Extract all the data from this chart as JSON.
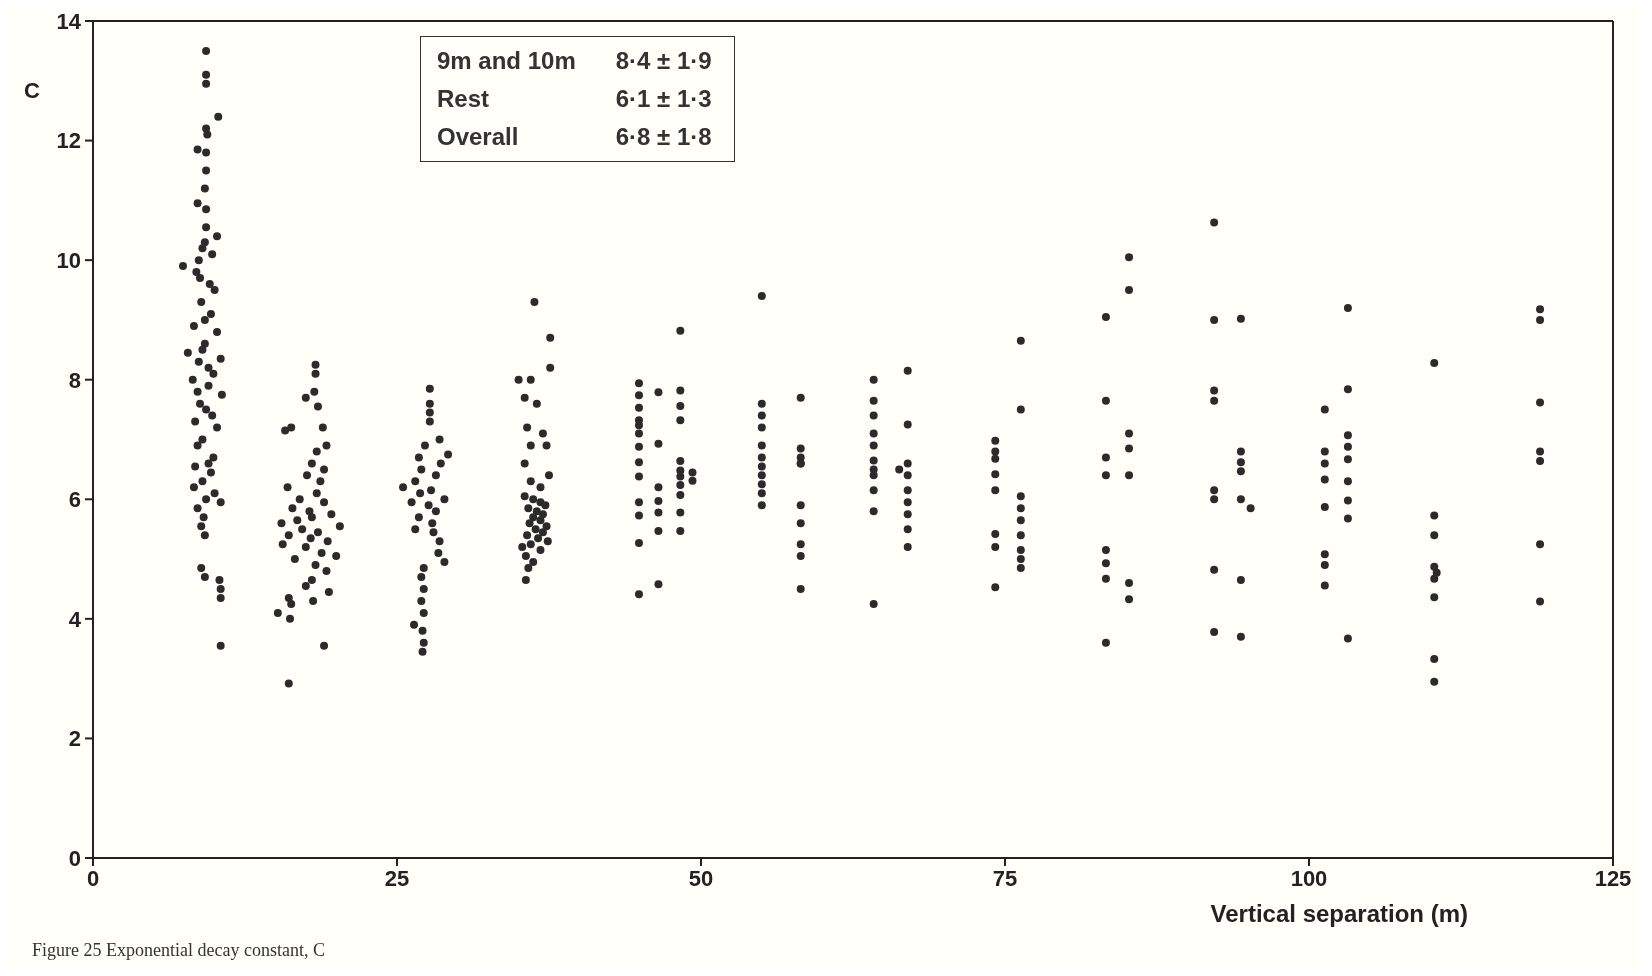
{
  "chart_data": {
    "type": "scatter",
    "xlabel": "Vertical separation (m)",
    "ylabel": "C",
    "xlim": [
      0,
      125
    ],
    "xticks": [
      0,
      25,
      50,
      75,
      100,
      125
    ],
    "ylim": [
      0,
      14
    ],
    "yticks": [
      0,
      2,
      4,
      6,
      8,
      10,
      12,
      14
    ],
    "grid": false,
    "legend": false,
    "marker": "circle",
    "annotations": [
      "9m and 10m",
      "8·4 ± 1·9",
      "Rest",
      "6·1 ± 1·3",
      "Overall",
      "6·8 ± 1·8",
      "Figure 25  Exponential decay constant, C"
    ],
    "series": [
      {
        "color": "#2b2b2b",
        "x": [
          9.3,
          9.3,
          9.3,
          10.3,
          9.3,
          9.4,
          8.6,
          9.3,
          9.3,
          9.2,
          8.6,
          9.3,
          9.3,
          10.2,
          9.0,
          9.8,
          8.7,
          7.4,
          8.5,
          9.6,
          10.0,
          8.9,
          9.7,
          8.3,
          10.2,
          9.2,
          7.8,
          10.5,
          8.7,
          9.9,
          8.2,
          9.5,
          10.6,
          8.8,
          9.3,
          8.4,
          10.2,
          9.0,
          8.6,
          9.9,
          8.4,
          9.7,
          9.0,
          8.3,
          10.0,
          9.3,
          10.5,
          8.6,
          9.1,
          8.9,
          9.2,
          8.9,
          9.2,
          10.4,
          10.5,
          10.5,
          10.5,
          9.2,
          9.0,
          9.5,
          8.6,
          9.8,
          9.5,
          8.8,
          9.2,
          18.3,
          18.3,
          18.2,
          17.5,
          18.5,
          18.9,
          15.8,
          16.3,
          19.2,
          18.4,
          18.0,
          17.6,
          18.7,
          16.0,
          17.0,
          19.0,
          16.4,
          17.8,
          19.6,
          15.5,
          20.3,
          17.2,
          18.5,
          16.1,
          19.3,
          15.6,
          17.5,
          18.8,
          20.0,
          16.6,
          18.3,
          19.2,
          18.0,
          17.5,
          19.4,
          18.1,
          16.3,
          15.2,
          16.2,
          16.1,
          19.0,
          16.1,
          18.4,
          18.0,
          17.9,
          16.8,
          19.0,
          27.7,
          27.7,
          27.7,
          27.7,
          28.5,
          27.3,
          29.2,
          26.8,
          28.6,
          27.0,
          28.2,
          26.5,
          25.5,
          27.8,
          26.9,
          28.9,
          26.2,
          27.6,
          28.2,
          26.8,
          27.9,
          26.5,
          28.0,
          28.5,
          28.4,
          28.9,
          27.2,
          27.0,
          27.2,
          27.0,
          27.2,
          26.4,
          27.1,
          27.2,
          27.1,
          36.3,
          37.6,
          37.6,
          35.0,
          36.0,
          35.5,
          36.5,
          35.7,
          37.0,
          36.0,
          37.3,
          35.5,
          37.5,
          36.0,
          36.8,
          35.5,
          36.2,
          36.8,
          37.2,
          35.8,
          36.5,
          37.0,
          36.2,
          36.8,
          35.9,
          37.3,
          36.4,
          37.0,
          35.7,
          36.6,
          37.4,
          36.0,
          35.3,
          36.8,
          35.6,
          36.2,
          35.8,
          35.6,
          44.9,
          44.9,
          44.9,
          44.9,
          44.9,
          44.9,
          44.9,
          44.9,
          44.9,
          44.9,
          44.9,
          44.9,
          44.9,
          46.5,
          46.5,
          46.5,
          46.5,
          46.5,
          46.5,
          46.5,
          48.3,
          48.3,
          48.3,
          48.3,
          48.3,
          48.3,
          48.3,
          48.3,
          48.3,
          48.3,
          48.3,
          49.3,
          49.3,
          55,
          55,
          55,
          55,
          55,
          55,
          55,
          55,
          55,
          55,
          55,
          58.2,
          58.2,
          58.2,
          58.2,
          58.2,
          58.2,
          58.2,
          58.2,
          58.2,
          58.2,
          64.2,
          64.2,
          64.2,
          64.2,
          64.2,
          64.2,
          64.2,
          64.2,
          64.2,
          64.2,
          64.2,
          67,
          67,
          67,
          67,
          67,
          67,
          67,
          67,
          67,
          66.3,
          74.2,
          74.2,
          74.2,
          74.2,
          74.2,
          74.2,
          74.2,
          74.2,
          76.3,
          76.3,
          76.3,
          76.3,
          76.3,
          76.3,
          76.3,
          76.3,
          76.3,
          83.3,
          83.3,
          83.3,
          83.3,
          83.3,
          83.3,
          83.3,
          83.3,
          85.2,
          85.2,
          85.2,
          85.2,
          85.2,
          85.2,
          85.2,
          92.2,
          92.2,
          92.2,
          92.2,
          92.2,
          92.2,
          92.2,
          92.2,
          94.4,
          94.4,
          94.4,
          94.4,
          94.4,
          95.2,
          94.4,
          94.4,
          101.3,
          101.3,
          101.3,
          101.3,
          101.3,
          101.3,
          101.3,
          101.3,
          103.2,
          103.2,
          103.2,
          103.2,
          103.2,
          103.2,
          103.2,
          103.2,
          103.2,
          110.3,
          110.3,
          110.3,
          110.3,
          110.5,
          110.3,
          110.3,
          110.3,
          110.3,
          119,
          119,
          119,
          119,
          119,
          119,
          119
        ],
        "values": [
          13.5,
          13.1,
          12.95,
          12.4,
          12.2,
          12.1,
          11.85,
          11.8,
          11.5,
          11.2,
          10.95,
          10.85,
          10.55,
          10.4,
          10.2,
          10.1,
          10.0,
          9.9,
          9.8,
          9.6,
          9.5,
          9.3,
          9.1,
          8.9,
          8.8,
          8.6,
          8.45,
          8.35,
          8.3,
          8.1,
          8.0,
          7.9,
          7.75,
          7.6,
          7.5,
          7.3,
          7.2,
          7.0,
          6.9,
          6.7,
          6.55,
          6.45,
          6.3,
          6.2,
          6.1,
          6.0,
          5.95,
          5.85,
          5.7,
          5.55,
          5.4,
          4.85,
          4.7,
          4.65,
          4.5,
          4.35,
          3.55,
          9.0,
          8.5,
          8.2,
          7.8,
          7.4,
          6.6,
          9.7,
          10.3,
          8.25,
          8.1,
          7.8,
          7.7,
          7.55,
          7.2,
          7.15,
          7.2,
          6.9,
          6.8,
          6.6,
          6.4,
          6.3,
          6.2,
          6.0,
          5.95,
          5.85,
          5.8,
          5.75,
          5.6,
          5.55,
          5.5,
          5.45,
          5.4,
          5.3,
          5.25,
          5.2,
          5.1,
          5.05,
          5.0,
          4.9,
          4.8,
          4.65,
          4.55,
          4.45,
          4.3,
          4.25,
          4.1,
          4.0,
          4.35,
          3.55,
          2.92,
          6.1,
          5.7,
          5.35,
          5.65,
          6.5,
          7.85,
          7.6,
          7.45,
          7.3,
          7.0,
          6.9,
          6.75,
          6.7,
          6.6,
          6.5,
          6.4,
          6.3,
          6.2,
          6.15,
          6.1,
          6.0,
          5.95,
          5.9,
          5.8,
          5.7,
          5.6,
          5.5,
          5.45,
          5.3,
          5.1,
          4.95,
          4.85,
          4.7,
          4.5,
          4.3,
          4.1,
          3.9,
          3.8,
          3.6,
          3.45,
          9.3,
          8.7,
          8.2,
          8.0,
          8.0,
          7.7,
          7.6,
          7.2,
          7.1,
          6.9,
          6.9,
          6.6,
          6.4,
          6.3,
          6.2,
          6.05,
          6.0,
          5.95,
          5.9,
          5.85,
          5.8,
          5.75,
          5.7,
          5.65,
          5.6,
          5.55,
          5.5,
          5.45,
          5.4,
          5.35,
          5.3,
          5.25,
          5.2,
          5.15,
          5.05,
          4.95,
          4.85,
          4.65,
          7.94,
          7.74,
          7.53,
          7.32,
          7.24,
          7.1,
          6.88,
          6.62,
          6.38,
          5.95,
          5.73,
          5.27,
          4.41,
          7.79,
          6.93,
          6.2,
          5.97,
          5.78,
          5.47,
          4.58,
          8.82,
          7.82,
          7.56,
          7.32,
          6.64,
          6.48,
          6.38,
          6.24,
          6.07,
          5.78,
          5.47,
          6.45,
          6.31,
          9.4,
          7.6,
          7.4,
          7.2,
          6.9,
          6.7,
          6.55,
          6.4,
          6.25,
          6.1,
          5.9,
          7.7,
          6.85,
          6.7,
          6.6,
          6.6,
          5.9,
          5.6,
          5.25,
          5.05,
          4.5,
          8.0,
          7.65,
          7.4,
          7.1,
          6.9,
          6.65,
          6.5,
          6.4,
          6.15,
          5.8,
          4.25,
          8.15,
          7.25,
          6.6,
          6.4,
          6.15,
          5.95,
          5.75,
          5.5,
          5.2,
          6.5,
          6.98,
          6.8,
          6.68,
          6.42,
          6.15,
          5.42,
          5.2,
          4.53,
          8.65,
          7.5,
          6.05,
          5.85,
          5.65,
          5.4,
          5.15,
          5.0,
          4.85,
          9.05,
          7.65,
          6.7,
          6.4,
          5.15,
          4.93,
          4.67,
          3.6,
          10.05,
          9.5,
          7.1,
          6.85,
          6.4,
          4.6,
          4.33,
          10.63,
          9.0,
          7.82,
          7.65,
          6.15,
          6.0,
          4.82,
          3.78,
          9.02,
          6.8,
          6.62,
          6.47,
          6.0,
          5.85,
          4.65,
          3.7,
          7.5,
          6.8,
          6.6,
          6.33,
          5.87,
          5.08,
          4.9,
          4.56,
          9.2,
          7.84,
          7.07,
          6.88,
          6.67,
          6.3,
          5.98,
          5.68,
          3.67,
          8.28,
          5.73,
          5.4,
          4.87,
          4.77,
          4.67,
          4.36,
          3.33,
          2.95,
          9.18,
          9.0,
          7.62,
          6.8,
          6.64,
          5.25,
          4.29
        ]
      }
    ]
  }
}
